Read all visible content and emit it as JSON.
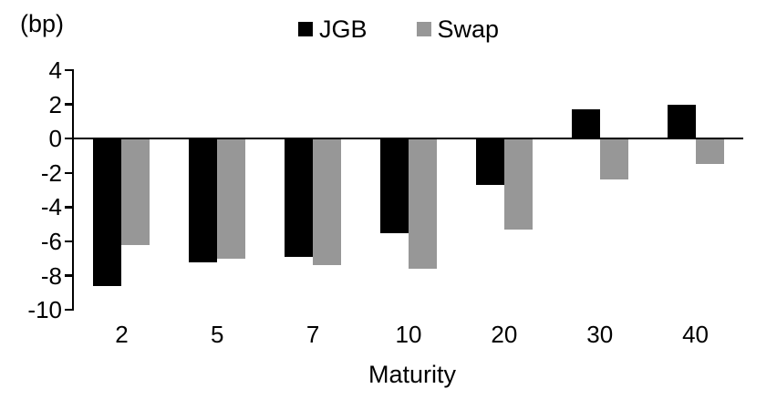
{
  "chart_data": {
    "type": "bar",
    "title": "",
    "unit_label": "(bp)",
    "xlabel": "Maturity",
    "categories": [
      "2",
      "5",
      "7",
      "10",
      "20",
      "30",
      "40"
    ],
    "series": [
      {
        "name": "JGB",
        "color": "#000000",
        "values": [
          -8.6,
          -7.2,
          -6.9,
          -5.5,
          -2.7,
          1.7,
          2.0
        ]
      },
      {
        "name": "Swap",
        "color": "#979797",
        "values": [
          -6.2,
          -7.0,
          -7.4,
          -7.6,
          -5.3,
          -2.4,
          -1.5
        ]
      }
    ],
    "ylim": [
      -10,
      4
    ],
    "yticks": [
      4,
      2,
      0,
      -2,
      -4,
      -6,
      -8,
      -10
    ],
    "grid": false,
    "legend_position": "top-center",
    "background_color": "#ffffff"
  }
}
